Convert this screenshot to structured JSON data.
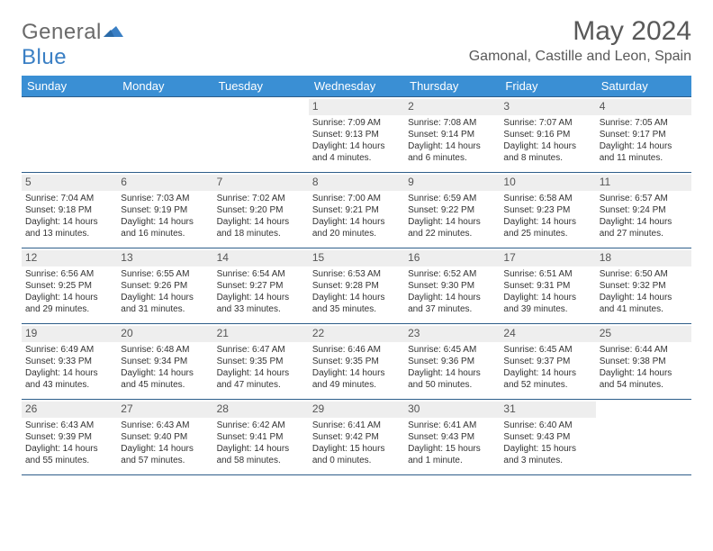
{
  "logo": {
    "word1": "General",
    "word2": "Blue",
    "color1": "#6a6a6a",
    "color2": "#3a7fc4"
  },
  "title": "May 2024",
  "location": "Gamonal, Castille and Leon, Spain",
  "weekdays": [
    "Sunday",
    "Monday",
    "Tuesday",
    "Wednesday",
    "Thursday",
    "Friday",
    "Saturday"
  ],
  "colors": {
    "header_bg": "#3a8fd4",
    "header_text": "#ffffff",
    "row_border": "#2e5e8a",
    "daynum_bg": "#eeeeee",
    "daynum_text": "#555555",
    "title_text": "#595959",
    "body_text": "#333333"
  },
  "typography": {
    "title_fontsize": 30,
    "location_fontsize": 16,
    "weekday_fontsize": 13,
    "daynum_fontsize": 12,
    "cell_fontsize": 10
  },
  "weeks": [
    [
      null,
      null,
      null,
      {
        "n": "1",
        "sr": "7:09 AM",
        "ss": "9:13 PM",
        "dl": "14 hours and 4 minutes."
      },
      {
        "n": "2",
        "sr": "7:08 AM",
        "ss": "9:14 PM",
        "dl": "14 hours and 6 minutes."
      },
      {
        "n": "3",
        "sr": "7:07 AM",
        "ss": "9:16 PM",
        "dl": "14 hours and 8 minutes."
      },
      {
        "n": "4",
        "sr": "7:05 AM",
        "ss": "9:17 PM",
        "dl": "14 hours and 11 minutes."
      }
    ],
    [
      {
        "n": "5",
        "sr": "7:04 AM",
        "ss": "9:18 PM",
        "dl": "14 hours and 13 minutes."
      },
      {
        "n": "6",
        "sr": "7:03 AM",
        "ss": "9:19 PM",
        "dl": "14 hours and 16 minutes."
      },
      {
        "n": "7",
        "sr": "7:02 AM",
        "ss": "9:20 PM",
        "dl": "14 hours and 18 minutes."
      },
      {
        "n": "8",
        "sr": "7:00 AM",
        "ss": "9:21 PM",
        "dl": "14 hours and 20 minutes."
      },
      {
        "n": "9",
        "sr": "6:59 AM",
        "ss": "9:22 PM",
        "dl": "14 hours and 22 minutes."
      },
      {
        "n": "10",
        "sr": "6:58 AM",
        "ss": "9:23 PM",
        "dl": "14 hours and 25 minutes."
      },
      {
        "n": "11",
        "sr": "6:57 AM",
        "ss": "9:24 PM",
        "dl": "14 hours and 27 minutes."
      }
    ],
    [
      {
        "n": "12",
        "sr": "6:56 AM",
        "ss": "9:25 PM",
        "dl": "14 hours and 29 minutes."
      },
      {
        "n": "13",
        "sr": "6:55 AM",
        "ss": "9:26 PM",
        "dl": "14 hours and 31 minutes."
      },
      {
        "n": "14",
        "sr": "6:54 AM",
        "ss": "9:27 PM",
        "dl": "14 hours and 33 minutes."
      },
      {
        "n": "15",
        "sr": "6:53 AM",
        "ss": "9:28 PM",
        "dl": "14 hours and 35 minutes."
      },
      {
        "n": "16",
        "sr": "6:52 AM",
        "ss": "9:30 PM",
        "dl": "14 hours and 37 minutes."
      },
      {
        "n": "17",
        "sr": "6:51 AM",
        "ss": "9:31 PM",
        "dl": "14 hours and 39 minutes."
      },
      {
        "n": "18",
        "sr": "6:50 AM",
        "ss": "9:32 PM",
        "dl": "14 hours and 41 minutes."
      }
    ],
    [
      {
        "n": "19",
        "sr": "6:49 AM",
        "ss": "9:33 PM",
        "dl": "14 hours and 43 minutes."
      },
      {
        "n": "20",
        "sr": "6:48 AM",
        "ss": "9:34 PM",
        "dl": "14 hours and 45 minutes."
      },
      {
        "n": "21",
        "sr": "6:47 AM",
        "ss": "9:35 PM",
        "dl": "14 hours and 47 minutes."
      },
      {
        "n": "22",
        "sr": "6:46 AM",
        "ss": "9:35 PM",
        "dl": "14 hours and 49 minutes."
      },
      {
        "n": "23",
        "sr": "6:45 AM",
        "ss": "9:36 PM",
        "dl": "14 hours and 50 minutes."
      },
      {
        "n": "24",
        "sr": "6:45 AM",
        "ss": "9:37 PM",
        "dl": "14 hours and 52 minutes."
      },
      {
        "n": "25",
        "sr": "6:44 AM",
        "ss": "9:38 PM",
        "dl": "14 hours and 54 minutes."
      }
    ],
    [
      {
        "n": "26",
        "sr": "6:43 AM",
        "ss": "9:39 PM",
        "dl": "14 hours and 55 minutes."
      },
      {
        "n": "27",
        "sr": "6:43 AM",
        "ss": "9:40 PM",
        "dl": "14 hours and 57 minutes."
      },
      {
        "n": "28",
        "sr": "6:42 AM",
        "ss": "9:41 PM",
        "dl": "14 hours and 58 minutes."
      },
      {
        "n": "29",
        "sr": "6:41 AM",
        "ss": "9:42 PM",
        "dl": "15 hours and 0 minutes."
      },
      {
        "n": "30",
        "sr": "6:41 AM",
        "ss": "9:43 PM",
        "dl": "15 hours and 1 minute."
      },
      {
        "n": "31",
        "sr": "6:40 AM",
        "ss": "9:43 PM",
        "dl": "15 hours and 3 minutes."
      },
      null
    ]
  ],
  "labels": {
    "sunrise": "Sunrise:",
    "sunset": "Sunset:",
    "daylight": "Daylight:"
  }
}
